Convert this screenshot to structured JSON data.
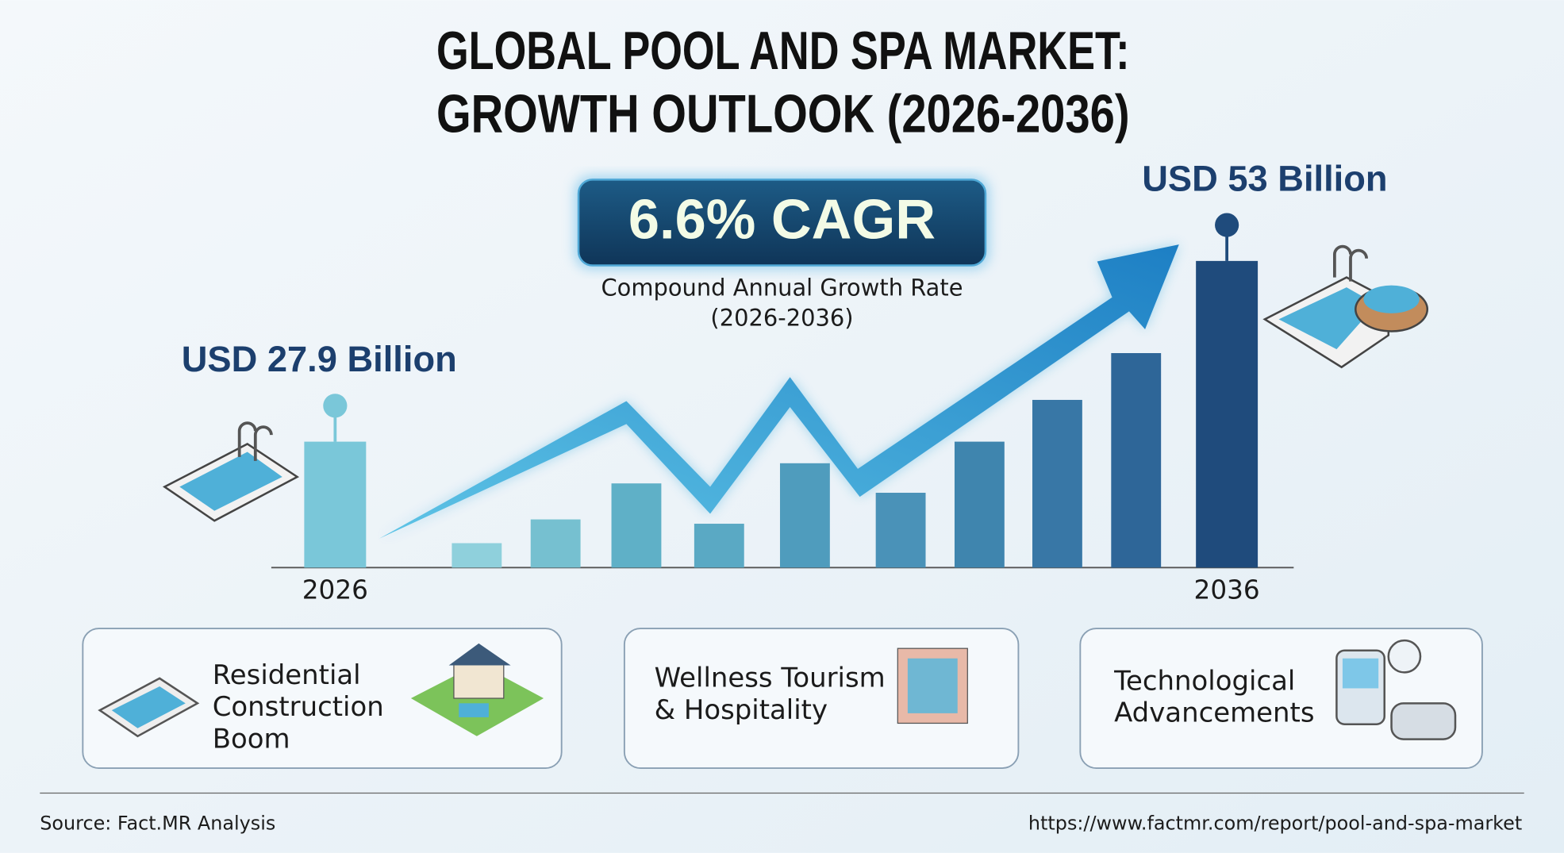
{
  "chart_data": {
    "type": "bar",
    "title": [
      "GLOBAL POOL AND SPA MARKET:",
      "GROWTH OUTLOOK (2026-2036)"
    ],
    "categories": [
      "2026",
      null,
      null,
      null,
      null,
      null,
      null,
      null,
      null,
      null,
      "2036"
    ],
    "values": [
      27.9,
      13.8,
      17.1,
      22.1,
      16.5,
      24.9,
      20.8,
      27.9,
      33.7,
      40.2,
      53
    ],
    "value_labels": [
      "USD 27.9 Billion",
      null,
      null,
      null,
      null,
      null,
      null,
      null,
      null,
      null,
      "USD 53 Billion"
    ],
    "colors": [
      "#7ac7d9",
      "#8fd0dc",
      "#76c0d0",
      "#5fb0c7",
      "#5aa9c4",
      "#4f9cbd",
      "#4a92b8",
      "#3f85ae",
      "#3877a6",
      "#2e6698",
      "#1f4b7c"
    ],
    "ylim": [
      10.4,
      60
    ]
  },
  "cagr": {
    "headline": "6.6% CAGR",
    "caption": [
      "Compound Annual Growth Rate",
      "(2026-2036)"
    ]
  },
  "drivers": [
    [
      "Residential",
      "Construction",
      "Boom"
    ],
    [
      "Wellness Tourism",
      "& Hospitality"
    ],
    [
      "Technological",
      "Advancements"
    ]
  ],
  "footer": {
    "source": "Source: Fact.MR Analysis",
    "url": "https://www.factmr.com/report/pool-and-spa-market"
  }
}
